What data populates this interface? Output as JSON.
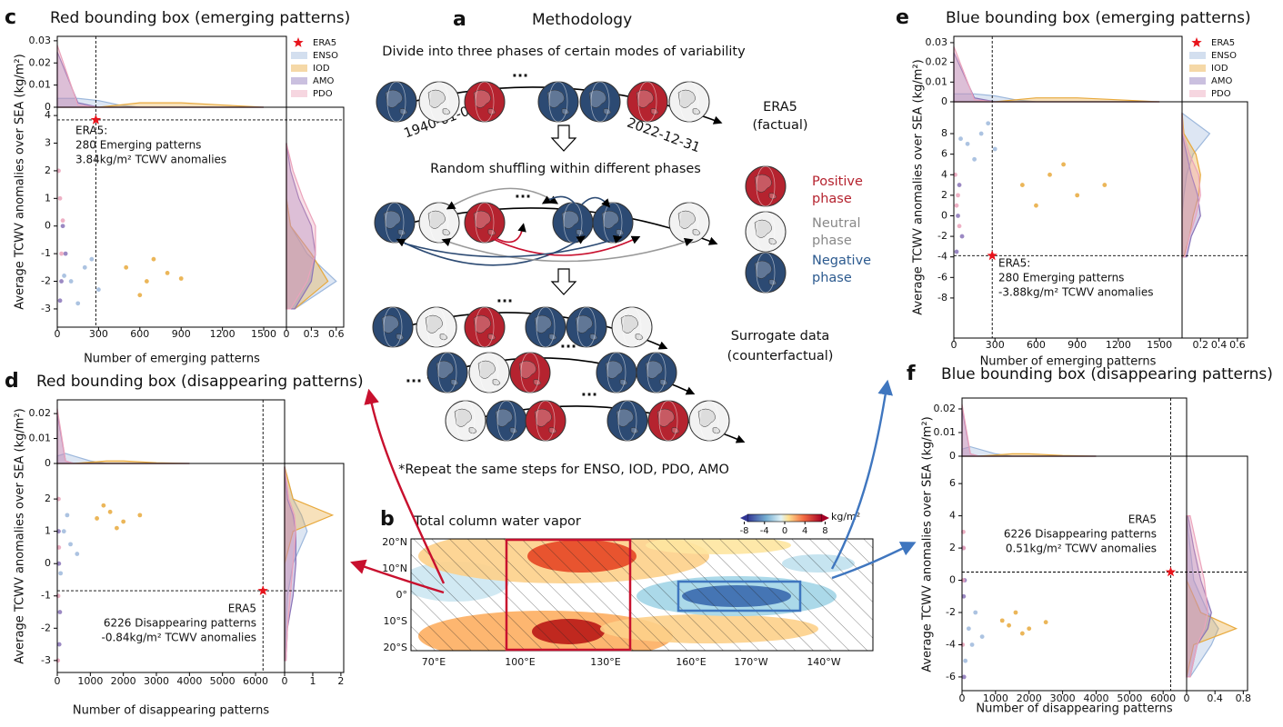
{
  "chart_data": [
    {
      "type": "scatter",
      "panel": "c",
      "title": "Red bounding box (emerging patterns)",
      "x_label": "Number of emerging patterns",
      "y_label": "Average TCWV anomalies over SEA (kg/m²)",
      "xlim": [
        0,
        1665
      ],
      "xticks": [
        0,
        300,
        600,
        900,
        1200,
        1500
      ],
      "ylim": [
        -3.66,
        4.3
      ],
      "yticks": [
        -3,
        -2,
        -1,
        0,
        1,
        2,
        3,
        4
      ],
      "top_ylim": [
        0,
        0.032
      ],
      "top_yticks": [
        0,
        0.01,
        0.02,
        0.03
      ],
      "right_xlim": [
        0,
        0.69
      ],
      "right_xticks": [
        0,
        0.3,
        0.6
      ],
      "legend": true,
      "reference": {
        "name": "ERA5",
        "x": 280,
        "y": 3.84,
        "color": "#e8141c",
        "annotation": [
          "ERA5:",
          "280 Emerging patterns",
          "3.84kg/m² TCWV anomalies"
        ]
      },
      "top_density_x": [
        0,
        150,
        300,
        450,
        600,
        900,
        1200,
        1500
      ],
      "right_density_y": [
        -3,
        -2,
        -1,
        0,
        1,
        2,
        3
      ],
      "series": [
        {
          "name": "ENSO",
          "color": "#9db8dc",
          "x": [
            100,
            200,
            300,
            150,
            250,
            50
          ],
          "values": [
            -2,
            -1.5,
            -2.3,
            -2.8,
            -1.2,
            -1.8
          ],
          "top_density": [
            0.004,
            0.004,
            0.003,
            0.001,
            0,
            0,
            0,
            0
          ],
          "right_density": [
            0.1,
            0.6,
            0.25,
            0.05,
            0,
            0,
            0
          ]
        },
        {
          "name": "IOD",
          "color": "#e8a93c",
          "x": [
            500,
            650,
            800,
            700,
            600,
            900
          ],
          "values": [
            -1.5,
            -2,
            -1.7,
            -1.2,
            -2.5,
            -1.9
          ],
          "top_density": [
            0,
            0,
            0,
            0.001,
            0.002,
            0.002,
            0.001,
            0
          ],
          "right_density": [
            0.1,
            0.5,
            0.3,
            0.05,
            0,
            0,
            0
          ]
        },
        {
          "name": "AMO",
          "color": "#8a74b8",
          "x": [
            30,
            60,
            40,
            20
          ],
          "values": [
            -2,
            -1,
            0,
            -2.7
          ],
          "top_density": [
            0.025,
            0.002,
            0,
            0,
            0,
            0,
            0,
            0
          ],
          "right_density": [
            0.1,
            0.3,
            0.35,
            0.3,
            0.15,
            0.05,
            0
          ]
        },
        {
          "name": "PDO",
          "color": "#eba3bb",
          "x": [
            20,
            40,
            10,
            30
          ],
          "values": [
            1,
            0.2,
            2,
            -1
          ],
          "top_density": [
            0.028,
            0.001,
            0,
            0,
            0,
            0,
            0,
            0
          ],
          "right_density": [
            0.05,
            0.25,
            0.35,
            0.35,
            0.2,
            0.08,
            0
          ]
        }
      ]
    },
    {
      "type": "scatter",
      "panel": "d",
      "title": "Red bounding box (disappearing patterns)",
      "x_label": "Number of disappearing patterns",
      "y_label": "Average TCWV anomalies over SEA (kg/m²)",
      "xlim": [
        0,
        6880
      ],
      "xticks": [
        0,
        1000,
        2000,
        3000,
        4000,
        5000,
        6000
      ],
      "ylim": [
        -3.37,
        3.1
      ],
      "yticks": [
        -3,
        -2,
        -1,
        0,
        1,
        2
      ],
      "top_ylim": [
        0,
        0.0255
      ],
      "top_yticks": [
        0,
        0.01,
        0.02
      ],
      "right_xlim": [
        0,
        2.1
      ],
      "right_xticks": [
        0,
        1,
        2
      ],
      "legend": false,
      "reference": {
        "x": 6226,
        "y": -0.84,
        "color": "#e8141c",
        "annotation": [
          "ERA5",
          "6226 Disappearing patterns",
          "-0.84kg/m² TCWV anomalies"
        ]
      },
      "top_density_x": [
        0,
        250,
        500,
        1000,
        1500,
        2000,
        3000,
        4000
      ],
      "right_density_y": [
        -3,
        -2,
        -1,
        0,
        1,
        1.5,
        2,
        3
      ],
      "series": [
        {
          "color": "#9db8dc",
          "x": [
            200,
            400,
            300,
            600,
            100
          ],
          "values": [
            1,
            0.6,
            1.5,
            0.3,
            -0.3
          ],
          "top_density": [
            0.003,
            0.004,
            0.003,
            0.001,
            0,
            0,
            0,
            0
          ],
          "right_density": [
            0,
            0.05,
            0.1,
            0.3,
            0.8,
            0.6,
            0.3,
            0
          ]
        },
        {
          "color": "#e8a93c",
          "x": [
            1200,
            1600,
            2000,
            1800,
            2500,
            1400
          ],
          "values": [
            1.4,
            1.6,
            1.3,
            1.1,
            1.5,
            1.8
          ],
          "top_density": [
            0,
            0,
            0,
            0.0005,
            0.001,
            0.001,
            0.0003,
            0
          ],
          "right_density": [
            0,
            0,
            0,
            0,
            0.3,
            1.7,
            0.3,
            0
          ]
        },
        {
          "color": "#8a74b8",
          "x": [
            50,
            80,
            40,
            60
          ],
          "values": [
            0,
            -1.5,
            1,
            -2.5
          ],
          "top_density": [
            0.02,
            0.001,
            0,
            0,
            0,
            0,
            0,
            0
          ],
          "right_density": [
            0.05,
            0.1,
            0.3,
            0.4,
            0.4,
            0.3,
            0.1,
            0
          ]
        },
        {
          "color": "#eba3bb",
          "x": [
            30,
            50,
            20,
            40
          ],
          "values": [
            -1,
            0.5,
            -3,
            2
          ],
          "top_density": [
            0.022,
            0.001,
            0,
            0,
            0,
            0,
            0,
            0
          ],
          "right_density": [
            0.05,
            0.1,
            0.2,
            0.3,
            0.4,
            0.35,
            0.15,
            0
          ]
        }
      ]
    },
    {
      "type": "scatter",
      "panel": "e",
      "title": "Blue bounding box (emerging patterns)",
      "x_label": "Number of emerging patterns",
      "y_label": "Average TCWV anomalies over SEA (kg/m²)",
      "xlim": [
        0,
        1665
      ],
      "xticks": [
        0,
        300,
        600,
        900,
        1200,
        1500
      ],
      "ylim": [
        -11.9,
        11.1
      ],
      "yticks": [
        -8,
        -6,
        -4,
        -2,
        0,
        2,
        4,
        6,
        8
      ],
      "top_ylim": [
        0,
        0.0332
      ],
      "top_yticks": [
        0,
        0.01,
        0.02,
        0.03
      ],
      "right_xlim": [
        0,
        0.71
      ],
      "right_xticks": [
        0.2,
        0.4,
        0.6
      ],
      "legend": true,
      "reference": {
        "name": "ERA5",
        "x": 280,
        "y": -3.88,
        "color": "#e8141c",
        "annotation": [
          "ERA5:",
          "280 Emerging patterns",
          "-3.88kg/m² TCWV anomalies"
        ]
      },
      "top_density_x": [
        0,
        150,
        300,
        450,
        600,
        900,
        1200,
        1500
      ],
      "right_density_y": [
        -4,
        -2,
        0,
        2,
        4,
        6,
        8,
        10
      ],
      "series": [
        {
          "name": "ENSO",
          "color": "#9db8dc",
          "x": [
            100,
            200,
            300,
            150,
            250,
            50
          ],
          "values": [
            7,
            8,
            6.5,
            5.5,
            9,
            7.5
          ],
          "top_density": [
            0.004,
            0.004,
            0.003,
            0.001,
            0,
            0,
            0,
            0
          ],
          "right_density": [
            0,
            0,
            0,
            0.02,
            0.05,
            0.12,
            0.3,
            0
          ]
        },
        {
          "name": "IOD",
          "color": "#e8a93c",
          "x": [
            500,
            700,
            900,
            600,
            800,
            1100
          ],
          "values": [
            3,
            4,
            2,
            1,
            5,
            3
          ],
          "top_density": [
            0,
            0,
            0,
            0.001,
            0.002,
            0.002,
            0.001,
            0
          ],
          "right_density": [
            0.02,
            0.08,
            0.12,
            0.18,
            0.2,
            0.15,
            0.02,
            0
          ]
        },
        {
          "name": "AMO",
          "color": "#8a74b8",
          "x": [
            30,
            60,
            40,
            20
          ],
          "values": [
            0,
            -2,
            3,
            -3.5
          ],
          "top_density": [
            0.025,
            0.002,
            0,
            0,
            0,
            0,
            0,
            0
          ],
          "right_density": [
            0.05,
            0.1,
            0.2,
            0.17,
            0.1,
            0.05,
            0,
            0
          ]
        },
        {
          "name": "PDO",
          "color": "#eba3bb",
          "x": [
            20,
            40,
            10,
            30
          ],
          "values": [
            1,
            -1,
            4,
            2
          ],
          "top_density": [
            0.028,
            0.001,
            0,
            0,
            0,
            0,
            0,
            0
          ],
          "right_density": [
            0.03,
            0.08,
            0.15,
            0.2,
            0.18,
            0.08,
            0.01,
            0
          ]
        }
      ]
    },
    {
      "type": "scatter",
      "panel": "f",
      "title": "Blue bounding box (disappearing patterns)",
      "x_label": "Number of disappearing patterns",
      "y_label": "Average TCWV anomalies over SEA (kg/m²)",
      "xlim": [
        0,
        6700
      ],
      "xticks": [
        0,
        1000,
        2000,
        3000,
        4000,
        5000,
        6000
      ],
      "ylim": [
        -6.85,
        7.7
      ],
      "yticks": [
        -6,
        -4,
        -2,
        0,
        2,
        4,
        6
      ],
      "top_ylim": [
        0,
        0.0246
      ],
      "top_yticks": [
        0,
        0.01,
        0.02
      ],
      "right_xlim": [
        0,
        0.86
      ],
      "right_xticks": [
        0,
        0.4,
        0.8
      ],
      "legend": false,
      "reference": {
        "x": 6226,
        "y": 0.51,
        "color": "#e8141c",
        "annotation": [
          "ERA5",
          "6226 Disappearing patterns",
          "0.51kg/m² TCWV anomalies"
        ]
      },
      "top_density_x": [
        0,
        250,
        500,
        1000,
        1500,
        2000,
        3000,
        4000
      ],
      "right_density_y": [
        -6,
        -4,
        -3,
        -2,
        0,
        2,
        4
      ],
      "series": [
        {
          "color": "#9db8dc",
          "x": [
            200,
            400,
            300,
            600,
            100
          ],
          "values": [
            -3,
            -2,
            -4,
            -3.5,
            -5
          ],
          "top_density": [
            0.003,
            0.004,
            0.003,
            0.001,
            0,
            0,
            0,
            0
          ],
          "right_density": [
            0.05,
            0.35,
            0.45,
            0.3,
            0.1,
            0.05,
            0
          ]
        },
        {
          "color": "#e8a93c",
          "x": [
            1200,
            1600,
            2000,
            1800,
            2500,
            1400
          ],
          "values": [
            -2.5,
            -2,
            -3,
            -3.3,
            -2.6,
            -2.8
          ],
          "top_density": [
            0,
            0,
            0,
            0.0005,
            0.001,
            0.001,
            0.0003,
            0
          ],
          "right_density": [
            0,
            0.1,
            0.7,
            0.2,
            0,
            0,
            0
          ]
        },
        {
          "color": "#8a74b8",
          "x": [
            50,
            80,
            40,
            60
          ],
          "values": [
            -1,
            0,
            2,
            -6
          ],
          "top_density": [
            0.02,
            0.001,
            0,
            0,
            0,
            0,
            0,
            0
          ],
          "right_density": [
            0.05,
            0.15,
            0.3,
            0.35,
            0.2,
            0.1,
            0.02
          ]
        },
        {
          "color": "#eba3bb",
          "x": [
            30,
            50,
            20,
            40
          ],
          "values": [
            0,
            2,
            -4,
            3
          ],
          "top_density": [
            0.022,
            0.001,
            0,
            0,
            0,
            0,
            0,
            0
          ],
          "right_density": [
            0.05,
            0.15,
            0.25,
            0.3,
            0.25,
            0.15,
            0.05
          ]
        }
      ]
    }
  ],
  "methodology": {
    "letter": "a",
    "title": "Methodology",
    "step1": "Divide into three phases of certain modes of variability",
    "era5_label": "ERA5",
    "era5_note": "(factual)",
    "start_date": "1940-01-01",
    "end_date": "2022-12-31",
    "ellipsis": "···",
    "step2": "Random shuffling within different phases",
    "phases": [
      {
        "name": "Positive",
        "note": "phase"
      },
      {
        "name": "Neutral",
        "note": "phase"
      },
      {
        "name": "Negative",
        "note": "phase"
      }
    ],
    "step3_label": "Surrogate data",
    "step3_note": "(counterfactual)",
    "footnote": "*Repeat the same steps for ENSO, IOD, PDO, AMO"
  },
  "map": {
    "letter": "b",
    "title": "Total column water vapor",
    "colorbar": {
      "lim": [
        -9,
        9
      ],
      "ticks": [
        -8,
        -4,
        0,
        4,
        8
      ],
      "unit": "kg/m²"
    },
    "lat_labels": [
      "20°N",
      "10°N",
      "0°",
      "10°S",
      "20°S"
    ],
    "lon_labels": [
      "70°E",
      "100°E",
      "130°E",
      "160°E",
      "170°W",
      "140°W"
    ]
  }
}
